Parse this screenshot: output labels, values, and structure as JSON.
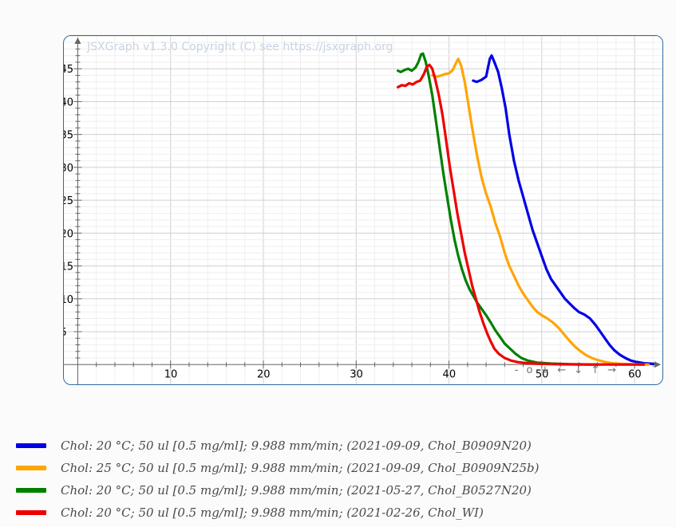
{
  "board": {
    "copyright": "JSXGraph v1.3.0 Copyright (C) see https://jsxgraph.org",
    "nav": {
      "zoom_out": "-",
      "zoom_reset": "o",
      "zoom_in": "+",
      "left": "←",
      "down": "↓",
      "up": "↑",
      "right": "→"
    }
  },
  "chart_data": {
    "type": "line",
    "title": "",
    "xlabel": "",
    "ylabel": "",
    "xlim": [
      -1.5,
      63
    ],
    "ylim": [
      -3,
      50
    ],
    "xticks": [
      10,
      20,
      30,
      40,
      50,
      60
    ],
    "yticks": [
      5,
      10,
      15,
      20,
      25,
      30,
      35,
      40,
      45
    ],
    "grid": true,
    "colors": {
      "grid": "#dcdcdc",
      "axis": "#666666",
      "blue": "#0000e6",
      "orange": "#ffa500",
      "green": "#008000",
      "red": "#ee0000"
    },
    "series": [
      {
        "name": "Chol: 20 °C; 50 ul [0.5 mg/ml]; 9.988 mm/min; (2021-09-09, Chol_B0909N20)",
        "color": "#0000e6",
        "points": [
          [
            42.6,
            43.2
          ],
          [
            43.0,
            43.0
          ],
          [
            43.5,
            43.3
          ],
          [
            44.0,
            43.8
          ],
          [
            44.4,
            46.5
          ],
          [
            44.6,
            47.0
          ],
          [
            44.9,
            46.0
          ],
          [
            45.3,
            44.5
          ],
          [
            45.7,
            42.0
          ],
          [
            46.1,
            39.0
          ],
          [
            46.5,
            35.0
          ],
          [
            47.0,
            31.0
          ],
          [
            47.5,
            28.0
          ],
          [
            48.0,
            25.5
          ],
          [
            48.5,
            23.0
          ],
          [
            49.0,
            20.5
          ],
          [
            49.5,
            18.5
          ],
          [
            50.0,
            16.5
          ],
          [
            50.5,
            14.5
          ],
          [
            51.0,
            13.0
          ],
          [
            51.5,
            12.0
          ],
          [
            52.0,
            11.0
          ],
          [
            52.5,
            10.0
          ],
          [
            53.0,
            9.3
          ],
          [
            53.5,
            8.6
          ],
          [
            54.0,
            8.0
          ],
          [
            54.6,
            7.6
          ],
          [
            55.2,
            7.0
          ],
          [
            55.8,
            6.0
          ],
          [
            56.3,
            5.0
          ],
          [
            56.8,
            4.0
          ],
          [
            57.3,
            3.0
          ],
          [
            57.8,
            2.2
          ],
          [
            58.4,
            1.5
          ],
          [
            59.0,
            1.0
          ],
          [
            59.6,
            0.6
          ],
          [
            60.2,
            0.4
          ],
          [
            61.0,
            0.2
          ],
          [
            62.0,
            0.1
          ]
        ]
      },
      {
        "name": "Chol: 25 °C; 50 ul [0.5 mg/ml]; 9.988 mm/min; (2021-09-09, Chol_B0909N25b)",
        "color": "#ffa500",
        "points": [
          [
            38.2,
            44.0
          ],
          [
            38.7,
            43.8
          ],
          [
            39.2,
            44.0
          ],
          [
            39.6,
            44.2
          ],
          [
            40.0,
            44.3
          ],
          [
            40.4,
            44.8
          ],
          [
            40.8,
            46.0
          ],
          [
            41.0,
            46.5
          ],
          [
            41.3,
            45.5
          ],
          [
            41.7,
            43.0
          ],
          [
            42.1,
            39.5
          ],
          [
            42.5,
            36.0
          ],
          [
            43.0,
            32.0
          ],
          [
            43.5,
            28.5
          ],
          [
            44.0,
            26.0
          ],
          [
            44.5,
            24.0
          ],
          [
            45.0,
            21.5
          ],
          [
            45.5,
            19.5
          ],
          [
            46.0,
            17.0
          ],
          [
            46.5,
            15.0
          ],
          [
            47.0,
            13.5
          ],
          [
            47.5,
            12.0
          ],
          [
            48.0,
            10.8
          ],
          [
            48.5,
            9.8
          ],
          [
            49.0,
            8.8
          ],
          [
            49.5,
            8.0
          ],
          [
            50.0,
            7.5
          ],
          [
            50.6,
            7.0
          ],
          [
            51.2,
            6.4
          ],
          [
            51.8,
            5.6
          ],
          [
            52.4,
            4.6
          ],
          [
            53.0,
            3.6
          ],
          [
            53.6,
            2.7
          ],
          [
            54.2,
            2.0
          ],
          [
            54.8,
            1.4
          ],
          [
            55.4,
            1.0
          ],
          [
            56.0,
            0.7
          ],
          [
            56.8,
            0.4
          ],
          [
            57.6,
            0.2
          ],
          [
            58.5,
            0.1
          ],
          [
            60.0,
            0.05
          ],
          [
            61.5,
            0.0
          ]
        ]
      },
      {
        "name": "Chol: 20 °C; 50 ul [0.5 mg/ml]; 9.988 mm/min; (2021-05-27, Chol_B0527N20)",
        "color": "#008000",
        "points": [
          [
            34.5,
            44.7
          ],
          [
            34.8,
            44.5
          ],
          [
            35.2,
            44.8
          ],
          [
            35.6,
            45.0
          ],
          [
            36.0,
            44.7
          ],
          [
            36.4,
            45.2
          ],
          [
            36.7,
            46.0
          ],
          [
            37.0,
            47.2
          ],
          [
            37.2,
            47.3
          ],
          [
            37.5,
            46.0
          ],
          [
            37.8,
            44.0
          ],
          [
            38.2,
            41.0
          ],
          [
            38.6,
            37.0
          ],
          [
            39.0,
            33.0
          ],
          [
            39.4,
            29.0
          ],
          [
            39.8,
            25.5
          ],
          [
            40.2,
            22.0
          ],
          [
            40.6,
            19.0
          ],
          [
            41.0,
            16.5
          ],
          [
            41.4,
            14.5
          ],
          [
            41.8,
            12.8
          ],
          [
            42.2,
            11.5
          ],
          [
            42.6,
            10.5
          ],
          [
            43.0,
            9.5
          ],
          [
            43.5,
            8.5
          ],
          [
            44.0,
            7.5
          ],
          [
            44.5,
            6.4
          ],
          [
            45.0,
            5.2
          ],
          [
            45.5,
            4.2
          ],
          [
            46.0,
            3.2
          ],
          [
            46.6,
            2.4
          ],
          [
            47.2,
            1.6
          ],
          [
            47.8,
            1.0
          ],
          [
            48.5,
            0.6
          ],
          [
            49.5,
            0.3
          ],
          [
            51.0,
            0.15
          ],
          [
            53.0,
            0.05
          ],
          [
            56.0,
            0.0
          ]
        ]
      },
      {
        "name": "Chol: 20 °C; 50 ul [0.5 mg/ml]; 9.988 mm/min; (2021-02-26, Chol_WI)",
        "color": "#ee0000",
        "points": [
          [
            34.5,
            42.2
          ],
          [
            34.9,
            42.5
          ],
          [
            35.3,
            42.4
          ],
          [
            35.7,
            42.8
          ],
          [
            36.1,
            42.6
          ],
          [
            36.5,
            43.0
          ],
          [
            36.9,
            43.2
          ],
          [
            37.3,
            44.2
          ],
          [
            37.6,
            45.3
          ],
          [
            37.9,
            45.6
          ],
          [
            38.2,
            45.0
          ],
          [
            38.5,
            43.5
          ],
          [
            38.9,
            41.0
          ],
          [
            39.3,
            38.0
          ],
          [
            39.7,
            34.0
          ],
          [
            40.1,
            30.0
          ],
          [
            40.5,
            26.5
          ],
          [
            40.9,
            23.0
          ],
          [
            41.3,
            20.0
          ],
          [
            41.7,
            17.0
          ],
          [
            42.1,
            14.5
          ],
          [
            42.5,
            12.0
          ],
          [
            42.9,
            10.0
          ],
          [
            43.3,
            8.0
          ],
          [
            43.7,
            6.3
          ],
          [
            44.1,
            4.8
          ],
          [
            44.5,
            3.5
          ],
          [
            44.9,
            2.4
          ],
          [
            45.4,
            1.6
          ],
          [
            46.0,
            1.0
          ],
          [
            46.7,
            0.6
          ],
          [
            47.5,
            0.35
          ],
          [
            48.5,
            0.2
          ],
          [
            50.0,
            0.1
          ],
          [
            52.0,
            0.05
          ],
          [
            55.0,
            0.02
          ],
          [
            61.0,
            0.0
          ]
        ]
      }
    ]
  }
}
